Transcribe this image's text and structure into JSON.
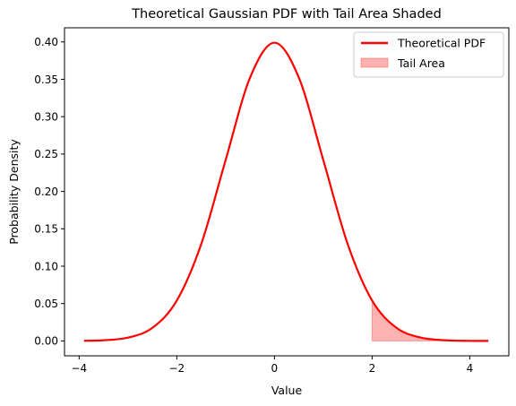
{
  "chart_data": {
    "type": "area",
    "title": "Theoretical Gaussian PDF with Tail Area Shaded",
    "xlabel": "Value",
    "ylabel": "Probability Density",
    "xlim": [
      -4.3,
      4.8
    ],
    "ylim": [
      -0.0199,
      0.4189
    ],
    "xticks": [
      -4,
      -2,
      0,
      2,
      4
    ],
    "xtick_labels": [
      "−4",
      "−2",
      "0",
      "2",
      "4"
    ],
    "yticks": [
      0.0,
      0.05,
      0.1,
      0.15,
      0.2,
      0.25,
      0.3,
      0.35,
      0.4
    ],
    "ytick_labels": [
      "0.00",
      "0.05",
      "0.10",
      "0.15",
      "0.20",
      "0.25",
      "0.30",
      "0.35",
      "0.40"
    ],
    "grid": false,
    "legend_position": "top-right",
    "series": [
      {
        "name": "Theoretical PDF",
        "kind": "line",
        "color": "#ff0000",
        "x": [
          -3.9,
          -3.5,
          -3.0,
          -2.5,
          -2.0,
          -1.5,
          -1.0,
          -0.5,
          0.0,
          0.5,
          1.0,
          1.5,
          2.0,
          2.5,
          3.0,
          3.5,
          4.0,
          4.38
        ],
        "y": [
          0.0002,
          0.0009,
          0.0044,
          0.0175,
          0.054,
          0.1295,
          0.242,
          0.3521,
          0.3989,
          0.3521,
          0.242,
          0.1295,
          0.054,
          0.0175,
          0.0044,
          0.0009,
          0.0001,
          3e-05
        ]
      },
      {
        "name": "Tail Area",
        "kind": "area",
        "color": "#ff0000",
        "opacity": 0.3,
        "x": [
          2.0,
          2.25,
          2.5,
          2.75,
          3.0,
          3.5,
          4.0,
          4.38
        ],
        "y": [
          0.054,
          0.0317,
          0.0175,
          0.0091,
          0.0044,
          0.0009,
          0.0001,
          3e-05
        ]
      }
    ]
  }
}
